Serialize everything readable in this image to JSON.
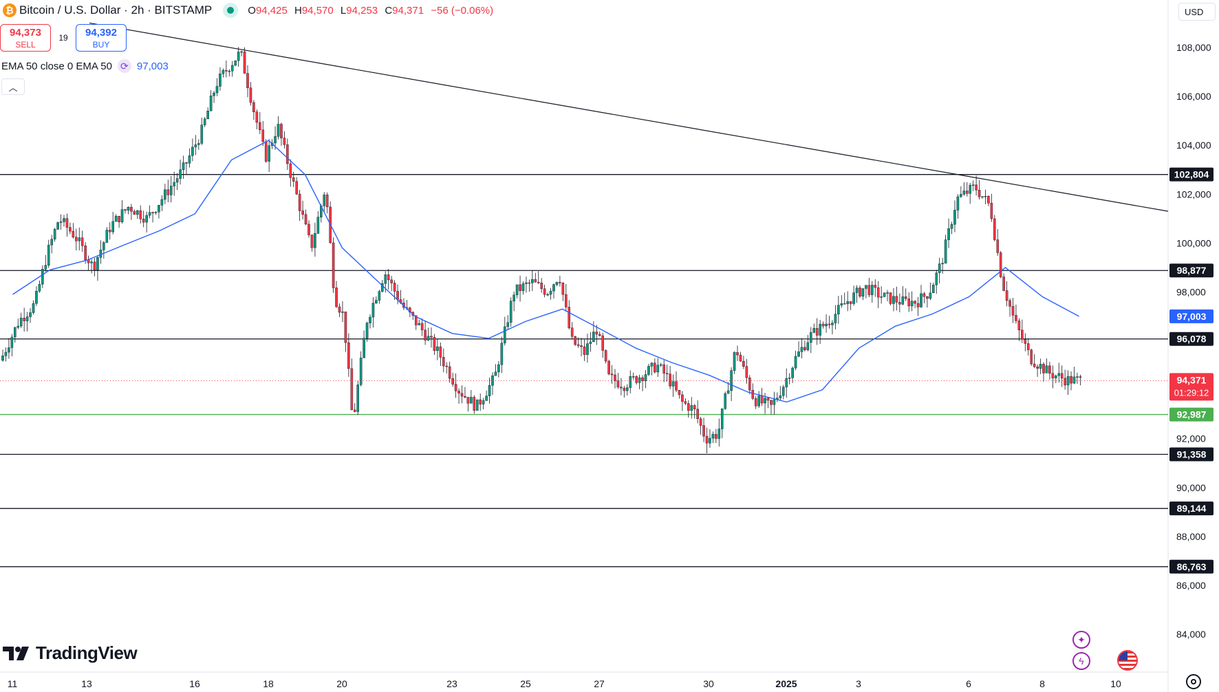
{
  "header": {
    "coin_icon": "₿",
    "title": "Bitcoin / U.S. Dollar · 2h · BITSTAMP",
    "market_status": "market-open-dot",
    "ohlc": {
      "o_label": "O",
      "o": "94,425",
      "h_label": "H",
      "h": "94,570",
      "l_label": "L",
      "l": "94,253",
      "c_label": "C",
      "c": "94,371",
      "change": "−56 (−0.06%)"
    }
  },
  "trade": {
    "sell_price": "94,373",
    "sell_label": "SELL",
    "spread": "19",
    "buy_price": "94,392",
    "buy_label": "BUY"
  },
  "indicator": {
    "label": "EMA 50 close 0 EMA 50",
    "value": "97,003"
  },
  "currency": "USD",
  "brand": "TradingView",
  "colors": {
    "bull": "#089981",
    "bear": "#f23645",
    "ema": "#2962ff",
    "support": "#4caf50",
    "line": "#131722"
  },
  "chart_data": {
    "type": "candlestick",
    "symbol": "BTCUSD",
    "interval": "2h",
    "y_ticks": [
      "108,000",
      "106,000",
      "104,000",
      "102,000",
      "100,000",
      "98,000",
      "96,000",
      "92,000",
      "90,000",
      "88,000",
      "86,000",
      "84,000"
    ],
    "y_tick_values": [
      108000,
      106000,
      104000,
      102000,
      100000,
      98000,
      96000,
      92000,
      90000,
      88000,
      86000,
      84000
    ],
    "x_ticks": [
      "11",
      "13",
      "16",
      "18",
      "20",
      "23",
      "25",
      "27",
      "30",
      "2025",
      "3",
      "6",
      "8",
      "10"
    ],
    "ylim": [
      82600,
      109800
    ],
    "horizontal_levels": [
      {
        "value": 102804,
        "label": "102,804",
        "color": "#131722"
      },
      {
        "value": 98877,
        "label": "98,877",
        "color": "#131722"
      },
      {
        "value": 96078,
        "label": "96,078",
        "color": "#131722"
      },
      {
        "value": 92987,
        "label": "92,987",
        "color": "#4caf50"
      },
      {
        "value": 91358,
        "label": "91,358",
        "color": "#131722"
      },
      {
        "value": 89144,
        "label": "89,144",
        "color": "#131722"
      },
      {
        "value": 86763,
        "label": "86,763",
        "color": "#131722"
      }
    ],
    "trendline": {
      "from": {
        "x": "10",
        "y": 109000
      },
      "to": {
        "x": "9",
        "y": 101300
      }
    },
    "ema_label": {
      "value": 97003,
      "label": "97,003"
    },
    "last_price": {
      "value": 94371,
      "label": "94,371",
      "countdown": "01:29:12"
    },
    "price_path": [
      [
        "11",
        95200
      ],
      [
        "11",
        96800
      ],
      [
        "12",
        97500
      ],
      [
        "12",
        99500
      ],
      [
        "12",
        101000
      ],
      [
        "13",
        100300
      ],
      [
        "13",
        99000
      ],
      [
        "14",
        100700
      ],
      [
        "14",
        101500
      ],
      [
        "15",
        101000
      ],
      [
        "15",
        102000
      ],
      [
        "16",
        103000
      ],
      [
        "16",
        104500
      ],
      [
        "17",
        106500
      ],
      [
        "17",
        107200
      ],
      [
        "17",
        107800
      ],
      [
        "18",
        105500
      ],
      [
        "18",
        103500
      ],
      [
        "18",
        104800
      ],
      [
        "19",
        102500
      ],
      [
        "19",
        99800
      ],
      [
        "20",
        102300
      ],
      [
        "20",
        97800
      ],
      [
        "20",
        97000
      ],
      [
        "20",
        92600
      ],
      [
        "21",
        96800
      ],
      [
        "21",
        98800
      ],
      [
        "22",
        97400
      ],
      [
        "22",
        96500
      ],
      [
        "23",
        95400
      ],
      [
        "23",
        94000
      ],
      [
        "24",
        93300
      ],
      [
        "24",
        94500
      ],
      [
        "25",
        98000
      ],
      [
        "25",
        98400
      ],
      [
        "26",
        98000
      ],
      [
        "26",
        98700
      ],
      [
        "26",
        96000
      ],
      [
        "27",
        95500
      ],
      [
        "27",
        96500
      ],
      [
        "27",
        94500
      ],
      [
        "28",
        94200
      ],
      [
        "28",
        94600
      ],
      [
        "29",
        95000
      ],
      [
        "29",
        94400
      ],
      [
        "29",
        93500
      ],
      [
        "30",
        93200
      ],
      [
        "30",
        92000
      ],
      [
        "30",
        92200
      ],
      [
        "31",
        95700
      ],
      [
        "31",
        93600
      ],
      [
        "1",
        93300
      ],
      [
        "1",
        94200
      ],
      [
        "1",
        95300
      ],
      [
        "2",
        96200
      ],
      [
        "2",
        96800
      ],
      [
        "3",
        97600
      ],
      [
        "3",
        98200
      ],
      [
        "4",
        97800
      ],
      [
        "4",
        97600
      ],
      [
        "5",
        97600
      ],
      [
        "5",
        98000
      ],
      [
        "5",
        99200
      ],
      [
        "6",
        101800
      ],
      [
        "6",
        102300
      ],
      [
        "7",
        101500
      ],
      [
        "7",
        98400
      ],
      [
        "7",
        96800
      ],
      [
        "8",
        95300
      ],
      [
        "8",
        94700
      ],
      [
        "9",
        94400
      ],
      [
        "9",
        94371
      ]
    ],
    "ema_path": [
      [
        "11",
        97900
      ],
      [
        "12",
        98900
      ],
      [
        "13",
        99300
      ],
      [
        "14",
        99900
      ],
      [
        "15",
        100500
      ],
      [
        "16",
        101200
      ],
      [
        "17",
        103400
      ],
      [
        "18",
        104200
      ],
      [
        "19",
        102800
      ],
      [
        "20",
        99800
      ],
      [
        "21",
        98400
      ],
      [
        "22",
        97000
      ],
      [
        "23",
        96300
      ],
      [
        "24",
        96100
      ],
      [
        "25",
        96800
      ],
      [
        "26",
        97300
      ],
      [
        "27",
        96500
      ],
      [
        "28",
        95700
      ],
      [
        "29",
        95100
      ],
      [
        "30",
        94600
      ],
      [
        "31",
        93900
      ],
      [
        "1",
        93500
      ],
      [
        "2",
        94000
      ],
      [
        "3",
        95700
      ],
      [
        "4",
        96600
      ],
      [
        "5",
        97100
      ],
      [
        "6",
        97800
      ],
      [
        "7",
        99000
      ],
      [
        "8",
        97800
      ],
      [
        "9",
        97003
      ]
    ]
  }
}
